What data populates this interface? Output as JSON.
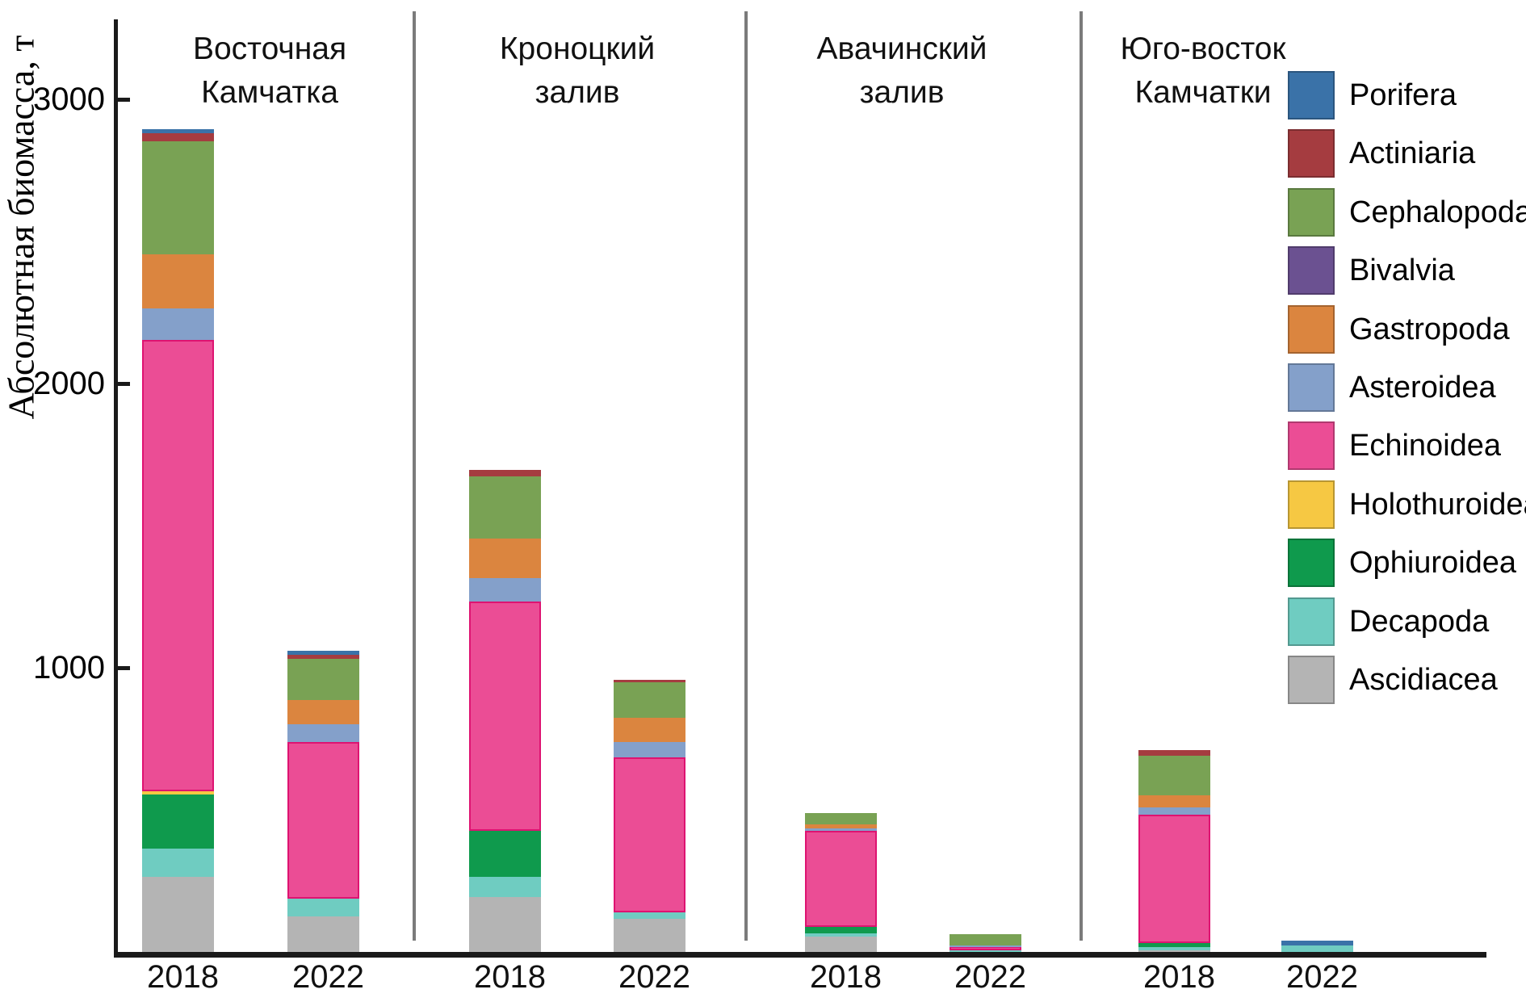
{
  "figure": {
    "y_axis_title": "Абсолютная биомасса, т",
    "background_color": "#ffffff",
    "axis_color": "#1a1a1a",
    "divider_color": "#7b7b7b"
  },
  "group_headers": [
    {
      "lines": [
        "Восточная",
        "Камчатка"
      ]
    },
    {
      "lines": [
        "Кроноцкий",
        "залив"
      ]
    },
    {
      "lines": [
        "Авачинский",
        "залив"
      ]
    },
    {
      "lines": [
        "Юго-восток",
        "Камчатки"
      ]
    }
  ],
  "x_labels": [
    "2018",
    "2022",
    "2018",
    "2022",
    "2018",
    "2022",
    "2018",
    "2022"
  ],
  "legend": {
    "items": [
      {
        "label": "Porifera",
        "color": "#3A72A8"
      },
      {
        "label": "Actiniaria",
        "color": "#A53C40"
      },
      {
        "label": "Cephalopoda",
        "color": "#79A254"
      },
      {
        "label": "Bivalvia",
        "color": "#6B5191"
      },
      {
        "label": "Gastropoda",
        "color": "#DB853F"
      },
      {
        "label": "Asteroidea",
        "color": "#84A0CA"
      },
      {
        "label": "Echinoidea",
        "color": "#EB4D95"
      },
      {
        "label": "Holothuroidea",
        "color": "#F6C843"
      },
      {
        "label": "Ophiuroidea",
        "color": "#0F9A4D"
      },
      {
        "label": "Decapoda",
        "color": "#6FCCC1"
      },
      {
        "label": "Ascidiacea",
        "color": "#B4B4B4"
      }
    ]
  },
  "chart_data": {
    "type": "bar",
    "stacked": true,
    "title": "",
    "ylabel": "Абсолютная биомасса, т",
    "unit": "т",
    "ylim": [
      0,
      3250
    ],
    "yticks": [
      1000,
      2000,
      3000
    ],
    "grid": false,
    "legend_position": "right",
    "group_titles": [
      "Восточная Камчатка",
      "Кроноцкий залив",
      "Авачинский залив",
      "Юго-восток Камчатки"
    ],
    "categories": [
      "Восточная Камчатка 2018",
      "Восточная Камчатка 2022",
      "Кроноцкий залив 2018",
      "Кроноцкий залив 2022",
      "Авачинский залив 2018",
      "Авачинский залив 2022",
      "Юго-восток Камчатки 2018",
      "Юго-восток Камчатки 2022"
    ],
    "stack_order_bottom_to_top": [
      "Ascidiacea",
      "Decapoda",
      "Ophiuroidea",
      "Holothuroidea",
      "Echinoidea",
      "Asteroidea",
      "Gastropoda",
      "Bivalvia",
      "Cephalopoda",
      "Actiniaria",
      "Porifera"
    ],
    "series": [
      {
        "name": "Porifera",
        "color": "#3A72A8",
        "values": [
          14,
          15,
          0,
          0,
          0,
          0,
          0,
          18
        ]
      },
      {
        "name": "Actiniaria",
        "color": "#A53C40",
        "values": [
          29,
          14,
          24,
          9,
          0,
          0,
          20,
          0
        ]
      },
      {
        "name": "Cephalopoda",
        "color": "#79A254",
        "values": [
          396,
          145,
          219,
          124,
          41,
          40,
          139,
          0
        ]
      },
      {
        "name": "Bivalvia",
        "color": "#6B5191",
        "values": [
          0,
          0,
          0,
          0,
          0,
          0,
          0,
          0
        ]
      },
      {
        "name": "Gastropoda",
        "color": "#DB853F",
        "values": [
          191,
          86,
          139,
          84,
          12,
          0,
          43,
          0
        ]
      },
      {
        "name": "Asteroidea",
        "color": "#84A0CA",
        "values": [
          110,
          61,
          81,
          55,
          11,
          7,
          26,
          0
        ]
      },
      {
        "name": "Echinoidea",
        "color": "#EB4D95",
        "values": [
          1590,
          552,
          809,
          546,
          338,
          7,
          451,
          0
        ]
      },
      {
        "name": "Holothuroidea",
        "color": "#F6C843",
        "values": [
          9,
          0,
          0,
          0,
          0,
          0,
          0,
          0
        ]
      },
      {
        "name": "Ophiuroidea",
        "color": "#0F9A4D",
        "values": [
          191,
          0,
          162,
          0,
          23,
          0,
          15,
          0
        ]
      },
      {
        "name": "Decapoda",
        "color": "#6FCCC1",
        "values": [
          101,
          64,
          69,
          23,
          9,
          9,
          11,
          22
        ]
      },
      {
        "name": "Ascidiacea",
        "color": "#B4B4B4",
        "values": [
          263,
          124,
          194,
          116,
          55,
          0,
          6,
          0
        ]
      }
    ],
    "totals": [
      2894,
      1061,
      1697,
      957,
      489,
      63,
      711,
      40
    ]
  }
}
